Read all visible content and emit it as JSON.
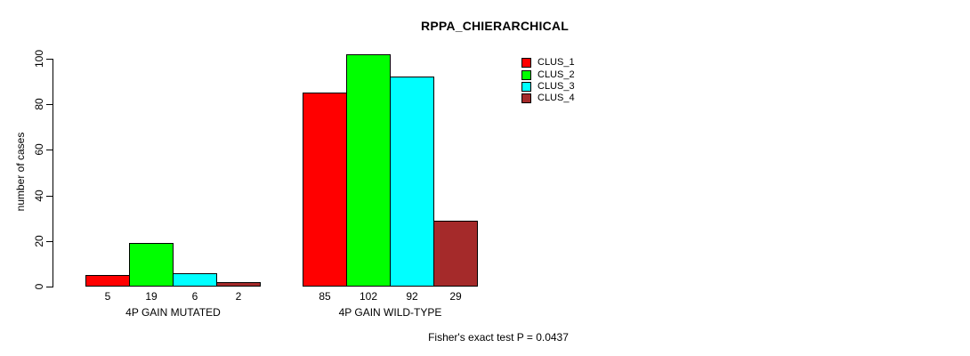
{
  "chart_data": {
    "type": "bar",
    "title": "RPPA_CHIERARCHICAL",
    "ylabel": "number of cases",
    "ylim": [
      0,
      100
    ],
    "yticks": [
      0,
      20,
      40,
      60,
      80,
      100
    ],
    "grid": false,
    "categories": [
      "4P GAIN MUTATED",
      "4P GAIN WILD-TYPE"
    ],
    "series": [
      {
        "name": "CLUS_1",
        "color": "#FF0000",
        "values": [
          5,
          85
        ]
      },
      {
        "name": "CLUS_2",
        "color": "#00FF00",
        "values": [
          19,
          102
        ]
      },
      {
        "name": "CLUS_3",
        "color": "#00FFFF",
        "values": [
          6,
          92
        ]
      },
      {
        "name": "CLUS_4",
        "color": "#A52A2A",
        "values": [
          2,
          29
        ]
      }
    ],
    "bar_value_labels": true,
    "legend_position": "top-right",
    "annotation": "Fisher's exact test P = 0.0437"
  },
  "colors": {
    "background": "#FFFFFF",
    "axis": "#000000",
    "text": "#000000"
  }
}
